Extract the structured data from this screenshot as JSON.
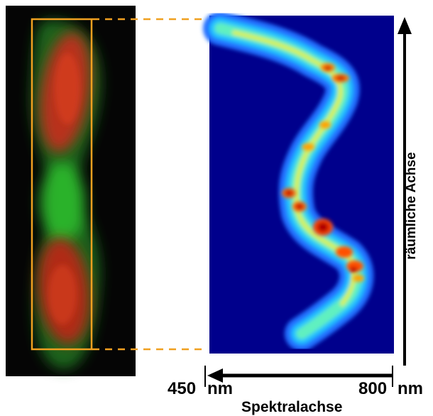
{
  "labels": {
    "wavelength_start": "450",
    "wavelength_start_unit": "nm",
    "wavelength_end": "800",
    "wavelength_end_unit": "nm",
    "spectral_axis": "Spektralachse",
    "spatial_axis": "räumliche Achse"
  },
  "colors": {
    "selection_box": "#f0a020",
    "spectrum_background": "#00008c",
    "micrograph_background": "#050505",
    "cell_red": "#c0301a",
    "cell_green": "#2fbf2f"
  }
}
